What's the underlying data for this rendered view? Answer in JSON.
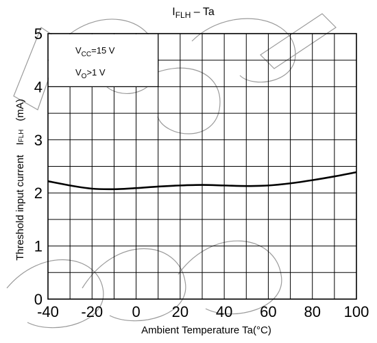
{
  "chart_data": {
    "type": "line",
    "title": {
      "main": "I",
      "sub": "FLH",
      "rest": " – Ta"
    },
    "xlabel": "Ambient Temperature Ta(°C)",
    "ylabel": {
      "text": "Threshold input current",
      "symbol": "I",
      "symbol_sub": "FLH",
      "unit": "(mA)"
    },
    "xlim": [
      -40,
      100
    ],
    "ylim": [
      0,
      5
    ],
    "x_ticks": [
      "-40",
      "-20",
      "0",
      "20",
      "40",
      "60",
      "80",
      "100"
    ],
    "y_ticks": [
      "0",
      "1",
      "2",
      "3",
      "4",
      "5"
    ],
    "grid": true,
    "conditions": [
      {
        "main": "V",
        "sub": "CC",
        "rest": "=15 V"
      },
      {
        "main": "V",
        "sub": "O",
        "rest": ">1 V"
      }
    ],
    "series": [
      {
        "x": [
          -40,
          -30,
          -20,
          -10,
          0,
          10,
          20,
          30,
          40,
          50,
          60,
          70,
          80,
          90,
          100
        ],
        "y": [
          2.22,
          2.14,
          2.08,
          2.07,
          2.09,
          2.12,
          2.14,
          2.15,
          2.14,
          2.13,
          2.14,
          2.18,
          2.24,
          2.31,
          2.39
        ]
      }
    ],
    "line_color": "#000000"
  }
}
